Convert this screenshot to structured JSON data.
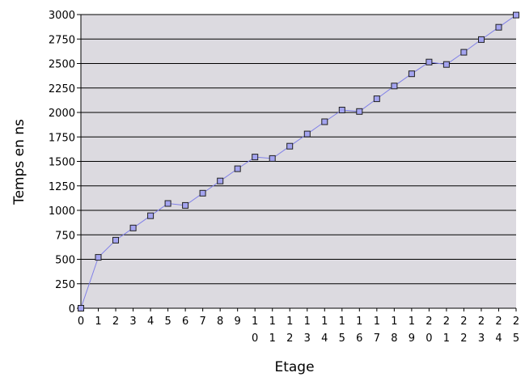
{
  "chart_data": {
    "type": "line",
    "title": "",
    "xlabel": "Etage",
    "ylabel": "Temps en ns",
    "ylim": [
      0,
      3000
    ],
    "yticks": [
      0,
      250,
      500,
      750,
      1000,
      1250,
      1500,
      1750,
      2000,
      2250,
      2500,
      2750,
      3000
    ],
    "x": [
      0,
      1,
      2,
      3,
      4,
      5,
      6,
      7,
      8,
      9,
      10,
      11,
      12,
      13,
      14,
      15,
      16,
      17,
      18,
      19,
      20,
      21,
      22,
      23,
      24,
      25
    ],
    "xtick_labels": [
      "0",
      "1",
      "2",
      "3",
      "4",
      "5",
      "6",
      "7",
      "8",
      "9",
      "10",
      "11",
      "12",
      "13",
      "14",
      "15",
      "16",
      "17",
      "18",
      "19",
      "20",
      "21",
      "22",
      "23",
      "24",
      "25"
    ],
    "series": [
      {
        "values": [
          0,
          520,
          695,
          820,
          945,
          1070,
          1050,
          1175,
          1300,
          1425,
          1545,
          1530,
          1655,
          1780,
          1905,
          2025,
          2010,
          2140,
          2270,
          2395,
          2515,
          2490,
          2615,
          2745,
          2870,
          2995
        ]
      }
    ],
    "grid": "horizontal",
    "legend": "none",
    "colors": {
      "plot_background": "#dcdae0",
      "gridline": "#000000",
      "line": "#8080e8",
      "marker_fill": "#a4a4f0",
      "marker_stroke": "#202020"
    }
  }
}
